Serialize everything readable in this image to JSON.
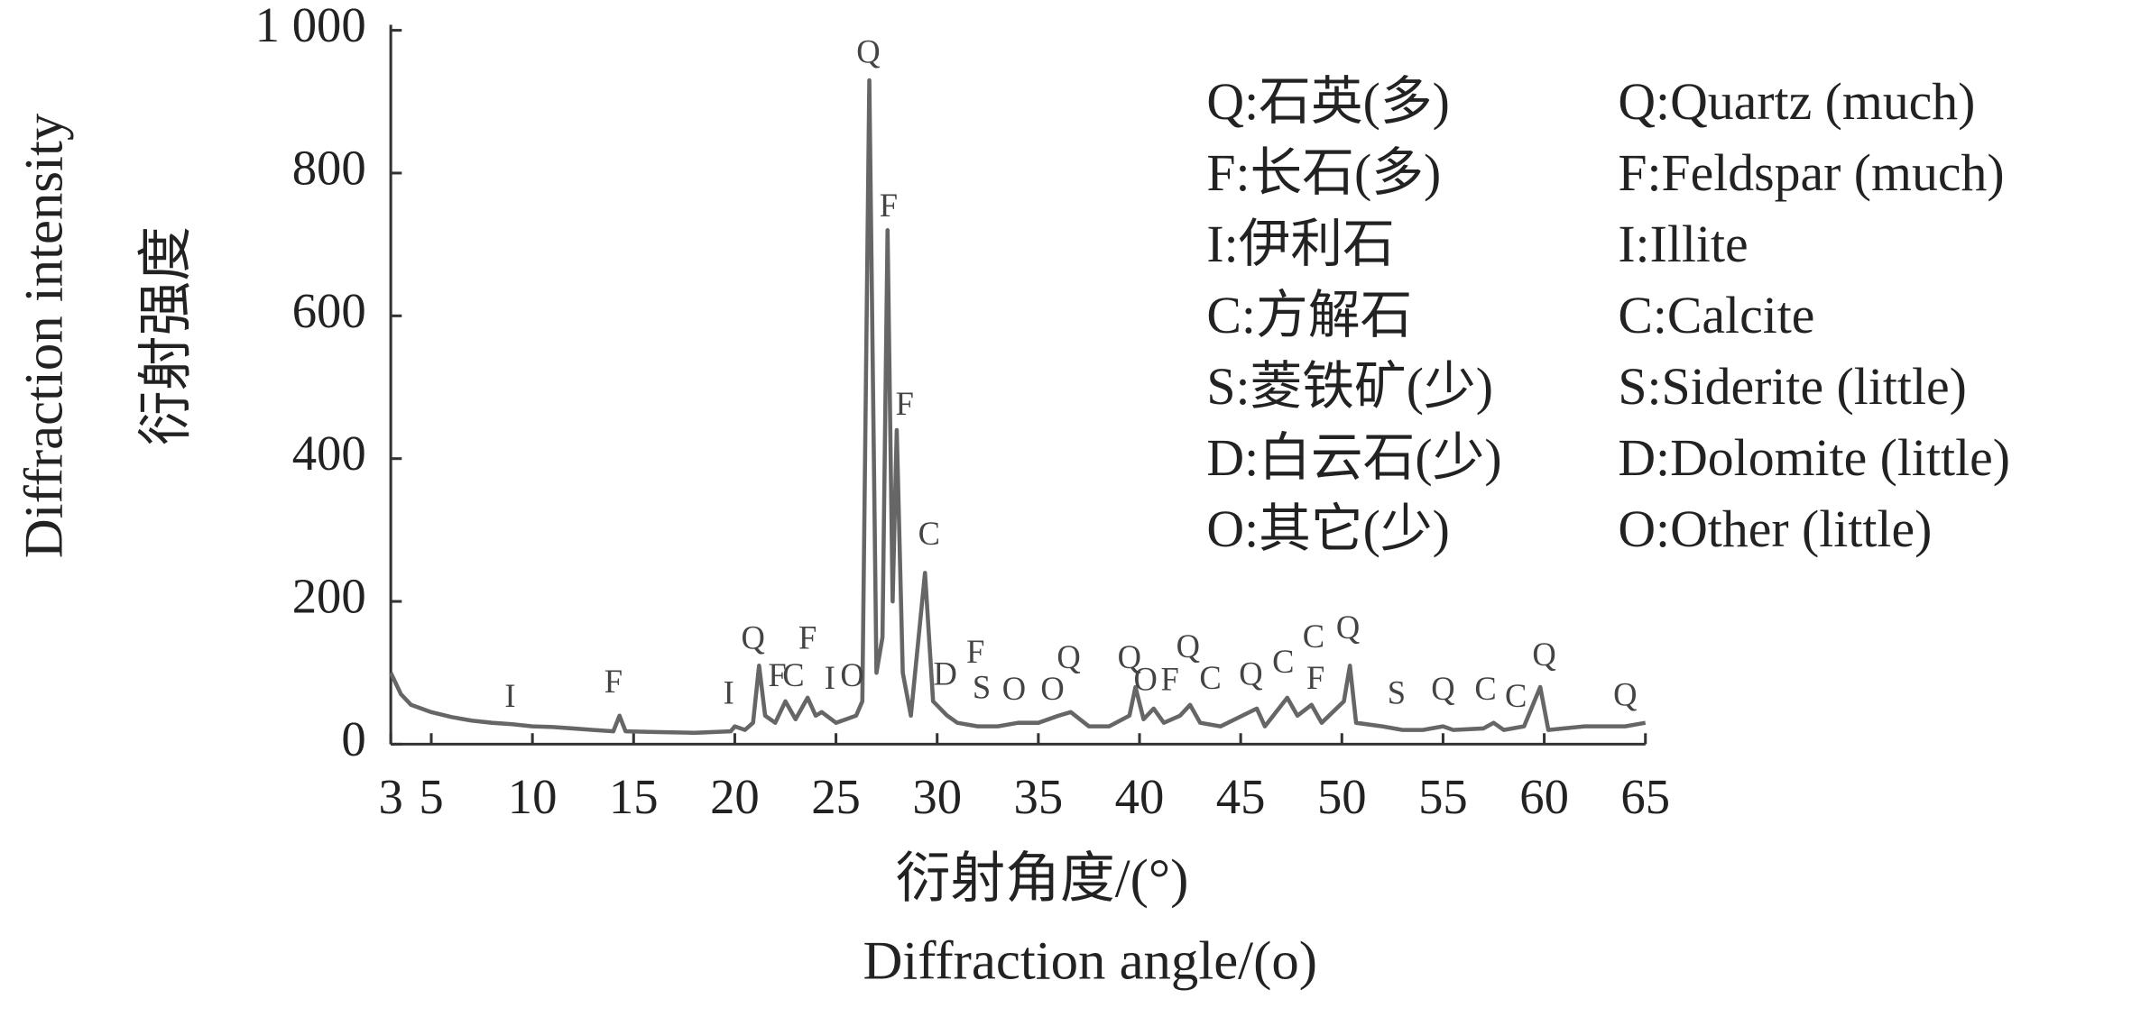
{
  "chart_data": {
    "type": "line",
    "ylabel_en": "Diffraction intensity",
    "ylabel_cn": "衍射强度",
    "xlabel_cn": "衍射角度/(°)",
    "xlabel_en": "Diffraction angle/(o)",
    "xlim": [
      3,
      65
    ],
    "xticks": [
      3,
      5,
      10,
      15,
      20,
      25,
      30,
      35,
      40,
      45,
      50,
      55,
      60,
      65
    ],
    "ylim": [
      0,
      1000
    ],
    "yticks": [
      0,
      200,
      400,
      600,
      800,
      {
        "value": 1000,
        "label": "1 000"
      }
    ],
    "x": [
      3,
      3.5,
      4,
      5,
      6,
      7,
      8,
      9,
      10,
      11,
      12,
      13,
      14,
      14.3,
      14.6,
      16,
      18,
      19.8,
      20,
      20.5,
      20.9,
      21.2,
      21.5,
      22,
      22.5,
      23,
      23.6,
      24,
      24.3,
      25,
      25.5,
      26,
      26.3,
      26.65,
      27,
      27.3,
      27.55,
      27.8,
      28,
      28.3,
      28.7,
      29.4,
      29.8,
      30.5,
      31,
      32,
      33,
      34,
      35,
      36,
      36.6,
      37.5,
      38.5,
      39.5,
      39.8,
      40.2,
      40.7,
      41.2,
      42,
      42.5,
      43,
      44,
      45.8,
      46.2,
      47.3,
      47.8,
      48.5,
      49,
      50.1,
      50.4,
      50.7,
      52,
      53,
      54,
      55,
      55.5,
      57,
      57.5,
      58,
      59,
      59.8,
      60.2,
      62,
      64,
      65
    ],
    "series": [
      {
        "color": "#666666",
        "values": [
          100,
          70,
          55,
          45,
          38,
          33,
          30,
          28,
          25,
          24,
          22,
          20,
          18,
          40,
          18,
          17,
          16,
          18,
          25,
          20,
          30,
          110,
          40,
          30,
          60,
          35,
          65,
          40,
          45,
          30,
          35,
          40,
          60,
          930,
          100,
          150,
          720,
          200,
          440,
          100,
          40,
          240,
          60,
          40,
          30,
          25,
          25,
          30,
          30,
          40,
          45,
          25,
          25,
          40,
          80,
          35,
          50,
          30,
          40,
          55,
          30,
          25,
          50,
          25,
          65,
          40,
          55,
          30,
          60,
          110,
          30,
          25,
          20,
          20,
          25,
          20,
          22,
          30,
          20,
          25,
          80,
          20,
          25,
          25,
          30
        ]
      }
    ],
    "annotations": [
      {
        "text": "I",
        "x": 8.9,
        "y": 63
      },
      {
        "text": "F",
        "x": 14,
        "y": 83
      },
      {
        "text": "I",
        "x": 19.7,
        "y": 67
      },
      {
        "text": "Q",
        "x": 20.9,
        "y": 144
      },
      {
        "text": "F",
        "x": 22.1,
        "y": 92
      },
      {
        "text": "C",
        "x": 22.9,
        "y": 92
      },
      {
        "text": "F",
        "x": 23.6,
        "y": 144
      },
      {
        "text": "I",
        "x": 24.7,
        "y": 88
      },
      {
        "text": "O",
        "x": 25.8,
        "y": 92
      },
      {
        "text": "Q",
        "x": 26.6,
        "y": 965
      },
      {
        "text": "F",
        "x": 27.6,
        "y": 750
      },
      {
        "text": "F",
        "x": 28.4,
        "y": 472
      },
      {
        "text": "C",
        "x": 29.6,
        "y": 290
      },
      {
        "text": "D",
        "x": 30.4,
        "y": 94
      },
      {
        "text": "F",
        "x": 31.9,
        "y": 125
      },
      {
        "text": "S",
        "x": 32.2,
        "y": 75
      },
      {
        "text": "O",
        "x": 33.8,
        "y": 73
      },
      {
        "text": "O",
        "x": 35.7,
        "y": 73
      },
      {
        "text": "Q",
        "x": 36.5,
        "y": 117
      },
      {
        "text": "Q",
        "x": 39.5,
        "y": 117
      },
      {
        "text": "O",
        "x": 40.3,
        "y": 86
      },
      {
        "text": "F",
        "x": 41.5,
        "y": 86
      },
      {
        "text": "Q",
        "x": 42.4,
        "y": 132
      },
      {
        "text": "C",
        "x": 43.5,
        "y": 88
      },
      {
        "text": "Q",
        "x": 45.5,
        "y": 94
      },
      {
        "text": "C",
        "x": 47.1,
        "y": 111
      },
      {
        "text": "F",
        "x": 48.7,
        "y": 88
      },
      {
        "text": "C",
        "x": 48.6,
        "y": 146
      },
      {
        "text": "Q",
        "x": 50.3,
        "y": 159
      },
      {
        "text": "S",
        "x": 52.7,
        "y": 67
      },
      {
        "text": "Q",
        "x": 55,
        "y": 73
      },
      {
        "text": "C",
        "x": 57.1,
        "y": 73
      },
      {
        "text": "C",
        "x": 58.6,
        "y": 63
      },
      {
        "text": "Q",
        "x": 60,
        "y": 121
      },
      {
        "text": "Q",
        "x": 64,
        "y": 65
      }
    ],
    "legend": [
      {
        "cn": "Q:石英(多)",
        "en": "Q:Quartz (much)"
      },
      {
        "cn": "F:长石(多)",
        "en": "F:Feldspar (much)"
      },
      {
        "cn": "I:伊利石",
        "en": "I:Illite"
      },
      {
        "cn": "C:方解石",
        "en": "C:Calcite"
      },
      {
        "cn": "S:菱铁矿(少)",
        "en": "S:Siderite (little)"
      },
      {
        "cn": "D:白云石(少)",
        "en": "D:Dolomite (little)"
      },
      {
        "cn": "O:其它(少)",
        "en": "O:Other (little)"
      }
    ]
  }
}
